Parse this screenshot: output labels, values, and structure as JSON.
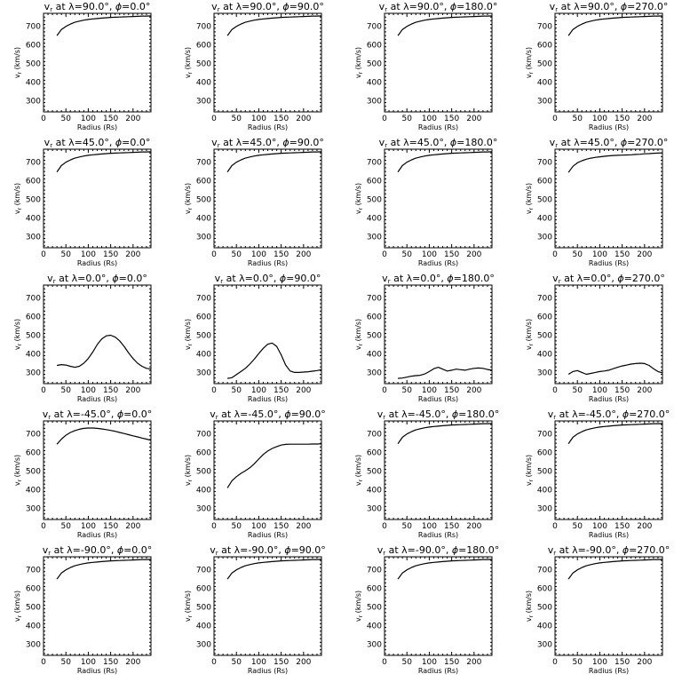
{
  "figure": {
    "xlabel": "Radius (Rs)",
    "ylabel": "v",
    "ylabel_sub": "r",
    "ylabel_unit": "(km/s)",
    "title_parts": {
      "prefix": "v",
      "sub": "r",
      "at": "at",
      "lambda": "λ",
      "phi": "ϕ",
      "deg": "°"
    }
  },
  "chart_data": [
    {
      "type": "line",
      "lat": "90.0",
      "lon": "0.0",
      "xlim": [
        0,
        240
      ],
      "ylim": [
        240,
        770
      ],
      "xticks": [
        0,
        50,
        100,
        150,
        200
      ],
      "yticks": [
        300,
        400,
        500,
        600,
        700
      ],
      "x": [
        30,
        40,
        50,
        60,
        70,
        80,
        90,
        100,
        110,
        120,
        130,
        140,
        150,
        160,
        170,
        180,
        190,
        200,
        210,
        220,
        230,
        240
      ],
      "y": [
        650,
        683,
        700,
        712,
        722,
        728,
        733,
        737,
        740,
        742,
        744,
        746,
        748,
        749,
        750,
        751,
        752,
        753,
        754,
        755,
        755,
        756
      ]
    },
    {
      "type": "line",
      "lat": "90.0",
      "lon": "90.0",
      "xlim": [
        0,
        240
      ],
      "ylim": [
        240,
        770
      ],
      "xticks": [
        0,
        50,
        100,
        150,
        200
      ],
      "yticks": [
        300,
        400,
        500,
        600,
        700
      ],
      "x": [
        30,
        40,
        50,
        60,
        70,
        80,
        90,
        100,
        110,
        120,
        130,
        140,
        150,
        160,
        170,
        180,
        190,
        200,
        210,
        220,
        230,
        240
      ],
      "y": [
        650,
        683,
        700,
        712,
        722,
        728,
        733,
        737,
        740,
        742,
        744,
        746,
        748,
        749,
        750,
        751,
        752,
        753,
        754,
        755,
        755,
        756
      ]
    },
    {
      "type": "line",
      "lat": "90.0",
      "lon": "180.0",
      "xlim": [
        0,
        240
      ],
      "ylim": [
        240,
        770
      ],
      "xticks": [
        0,
        50,
        100,
        150,
        200
      ],
      "yticks": [
        300,
        400,
        500,
        600,
        700
      ],
      "x": [
        30,
        40,
        50,
        60,
        70,
        80,
        90,
        100,
        110,
        120,
        130,
        140,
        150,
        160,
        170,
        180,
        190,
        200,
        210,
        220,
        230,
        240
      ],
      "y": [
        650,
        683,
        700,
        712,
        722,
        728,
        733,
        737,
        740,
        742,
        744,
        746,
        748,
        749,
        750,
        751,
        752,
        753,
        754,
        755,
        755,
        756
      ]
    },
    {
      "type": "line",
      "lat": "90.0",
      "lon": "270.0",
      "xlim": [
        0,
        240
      ],
      "ylim": [
        240,
        770
      ],
      "xticks": [
        0,
        50,
        100,
        150,
        200
      ],
      "yticks": [
        300,
        400,
        500,
        600,
        700
      ],
      "x": [
        30,
        40,
        50,
        60,
        70,
        80,
        90,
        100,
        110,
        120,
        130,
        140,
        150,
        160,
        170,
        180,
        190,
        200,
        210,
        220,
        230,
        240
      ],
      "y": [
        650,
        683,
        700,
        712,
        722,
        728,
        733,
        737,
        740,
        742,
        744,
        746,
        748,
        749,
        750,
        751,
        752,
        753,
        754,
        755,
        755,
        756
      ]
    },
    {
      "type": "line",
      "lat": "45.0",
      "lon": "0.0",
      "xlim": [
        0,
        240
      ],
      "ylim": [
        240,
        770
      ],
      "xticks": [
        0,
        50,
        100,
        150,
        200
      ],
      "yticks": [
        300,
        400,
        500,
        600,
        700
      ],
      "x": [
        30,
        40,
        50,
        60,
        70,
        80,
        90,
        100,
        110,
        120,
        130,
        140,
        150,
        160,
        170,
        180,
        190,
        200,
        210,
        220,
        230,
        240
      ],
      "y": [
        648,
        682,
        700,
        712,
        722,
        728,
        733,
        737,
        740,
        742,
        744,
        746,
        748,
        749,
        750,
        751,
        752,
        753,
        754,
        755,
        755,
        756
      ]
    },
    {
      "type": "line",
      "lat": "45.0",
      "lon": "90.0",
      "xlim": [
        0,
        240
      ],
      "ylim": [
        240,
        770
      ],
      "xticks": [
        0,
        50,
        100,
        150,
        200
      ],
      "yticks": [
        300,
        400,
        500,
        600,
        700
      ],
      "x": [
        30,
        40,
        50,
        60,
        70,
        80,
        90,
        100,
        110,
        120,
        130,
        140,
        150,
        160,
        170,
        180,
        190,
        200,
        210,
        220,
        230,
        240
      ],
      "y": [
        648,
        682,
        700,
        712,
        722,
        728,
        733,
        737,
        740,
        742,
        744,
        746,
        748,
        749,
        750,
        751,
        752,
        753,
        754,
        755,
        755,
        756
      ]
    },
    {
      "type": "line",
      "lat": "45.0",
      "lon": "180.0",
      "xlim": [
        0,
        240
      ],
      "ylim": [
        240,
        770
      ],
      "xticks": [
        0,
        50,
        100,
        150,
        200
      ],
      "yticks": [
        300,
        400,
        500,
        600,
        700
      ],
      "x": [
        30,
        40,
        50,
        60,
        70,
        80,
        90,
        100,
        110,
        120,
        130,
        140,
        150,
        160,
        170,
        180,
        190,
        200,
        210,
        220,
        230,
        240
      ],
      "y": [
        648,
        682,
        700,
        712,
        722,
        728,
        733,
        737,
        740,
        742,
        744,
        746,
        748,
        749,
        750,
        751,
        752,
        753,
        754,
        755,
        755,
        756
      ]
    },
    {
      "type": "line",
      "lat": "45.0",
      "lon": "270.0",
      "xlim": [
        0,
        240
      ],
      "ylim": [
        240,
        770
      ],
      "xticks": [
        0,
        50,
        100,
        150,
        200
      ],
      "yticks": [
        300,
        400,
        500,
        600,
        700
      ],
      "x": [
        30,
        40,
        50,
        60,
        70,
        80,
        90,
        100,
        110,
        120,
        130,
        140,
        150,
        160,
        170,
        180,
        190,
        200,
        210,
        220,
        230,
        240
      ],
      "y": [
        645,
        678,
        697,
        708,
        716,
        722,
        726,
        729,
        732,
        734,
        736,
        737,
        738,
        739,
        740,
        742,
        743,
        745,
        746,
        748,
        749,
        750
      ]
    },
    {
      "type": "line",
      "lat": "0.0",
      "lon": "0.0",
      "xlim": [
        0,
        240
      ],
      "ylim": [
        240,
        770
      ],
      "xticks": [
        0,
        50,
        100,
        150,
        200
      ],
      "yticks": [
        300,
        400,
        500,
        600,
        700
      ],
      "x": [
        30,
        40,
        50,
        60,
        70,
        80,
        90,
        100,
        110,
        120,
        130,
        140,
        150,
        160,
        170,
        180,
        190,
        200,
        210,
        220,
        230,
        240
      ],
      "y": [
        338,
        342,
        340,
        333,
        328,
        333,
        350,
        375,
        410,
        450,
        480,
        497,
        500,
        490,
        470,
        440,
        405,
        375,
        350,
        333,
        322,
        318
      ]
    },
    {
      "type": "line",
      "lat": "0.0",
      "lon": "90.0",
      "xlim": [
        0,
        240
      ],
      "ylim": [
        240,
        770
      ],
      "xticks": [
        0,
        50,
        100,
        150,
        200
      ],
      "yticks": [
        300,
        400,
        500,
        600,
        700
      ],
      "x": [
        30,
        40,
        50,
        60,
        70,
        80,
        90,
        100,
        110,
        120,
        130,
        140,
        150,
        160,
        170,
        180,
        190,
        200,
        210,
        220,
        230,
        240
      ],
      "y": [
        268,
        272,
        288,
        305,
        322,
        345,
        372,
        402,
        430,
        452,
        458,
        440,
        395,
        340,
        308,
        300,
        300,
        302,
        304,
        307,
        310,
        315
      ]
    },
    {
      "type": "line",
      "lat": "0.0",
      "lon": "180.0",
      "xlim": [
        0,
        240
      ],
      "ylim": [
        240,
        770
      ],
      "xticks": [
        0,
        50,
        100,
        150,
        200
      ],
      "yticks": [
        300,
        400,
        500,
        600,
        700
      ],
      "x": [
        30,
        40,
        50,
        60,
        70,
        80,
        90,
        100,
        110,
        120,
        130,
        140,
        150,
        160,
        170,
        180,
        190,
        200,
        210,
        220,
        230,
        240
      ],
      "y": [
        268,
        270,
        275,
        280,
        283,
        285,
        292,
        305,
        320,
        328,
        318,
        308,
        312,
        318,
        315,
        312,
        318,
        322,
        324,
        322,
        316,
        312
      ]
    },
    {
      "type": "line",
      "lat": "0.0",
      "lon": "270.0",
      "xlim": [
        0,
        240
      ],
      "ylim": [
        240,
        770
      ],
      "xticks": [
        0,
        50,
        100,
        150,
        200
      ],
      "yticks": [
        300,
        400,
        500,
        600,
        700
      ],
      "x": [
        30,
        40,
        50,
        60,
        70,
        80,
        90,
        100,
        110,
        120,
        130,
        140,
        150,
        160,
        170,
        180,
        190,
        200,
        210,
        220,
        230,
        240
      ],
      "y": [
        290,
        305,
        310,
        300,
        290,
        295,
        300,
        305,
        308,
        312,
        320,
        328,
        335,
        340,
        345,
        348,
        350,
        348,
        338,
        320,
        305,
        298
      ]
    },
    {
      "type": "line",
      "lat": "-45.0",
      "lon": "0.0",
      "xlim": [
        0,
        240
      ],
      "ylim": [
        240,
        770
      ],
      "xticks": [
        0,
        50,
        100,
        150,
        200
      ],
      "yticks": [
        300,
        400,
        500,
        600,
        700
      ],
      "x": [
        30,
        40,
        50,
        60,
        70,
        80,
        90,
        100,
        110,
        120,
        130,
        140,
        150,
        160,
        170,
        180,
        190,
        200,
        210,
        220,
        230,
        240
      ],
      "y": [
        645,
        672,
        693,
        708,
        718,
        725,
        730,
        732,
        732,
        730,
        727,
        723,
        719,
        714,
        708,
        702,
        696,
        690,
        684,
        678,
        672,
        666
      ]
    },
    {
      "type": "line",
      "lat": "-45.0",
      "lon": "90.0",
      "xlim": [
        0,
        240
      ],
      "ylim": [
        240,
        770
      ],
      "xticks": [
        0,
        50,
        100,
        150,
        200
      ],
      "yticks": [
        300,
        400,
        500,
        600,
        700
      ],
      "x": [
        30,
        40,
        50,
        60,
        70,
        80,
        90,
        100,
        110,
        120,
        130,
        140,
        150,
        160,
        170,
        180,
        190,
        200,
        210,
        220,
        230,
        240
      ],
      "y": [
        410,
        448,
        470,
        488,
        502,
        518,
        540,
        565,
        590,
        608,
        622,
        632,
        640,
        644,
        645,
        645,
        645,
        645,
        645,
        646,
        646,
        647
      ]
    },
    {
      "type": "line",
      "lat": "-45.0",
      "lon": "180.0",
      "xlim": [
        0,
        240
      ],
      "ylim": [
        240,
        770
      ],
      "xticks": [
        0,
        50,
        100,
        150,
        200
      ],
      "yticks": [
        300,
        400,
        500,
        600,
        700
      ],
      "x": [
        30,
        40,
        50,
        60,
        70,
        80,
        90,
        100,
        110,
        120,
        130,
        140,
        150,
        160,
        170,
        180,
        190,
        200,
        210,
        220,
        230,
        240
      ],
      "y": [
        648,
        682,
        700,
        712,
        722,
        728,
        733,
        737,
        740,
        742,
        744,
        746,
        748,
        749,
        750,
        751,
        752,
        753,
        754,
        755,
        755,
        756
      ]
    },
    {
      "type": "line",
      "lat": "-45.0",
      "lon": "270.0",
      "xlim": [
        0,
        240
      ],
      "ylim": [
        240,
        770
      ],
      "xticks": [
        0,
        50,
        100,
        150,
        200
      ],
      "yticks": [
        300,
        400,
        500,
        600,
        700
      ],
      "x": [
        30,
        40,
        50,
        60,
        70,
        80,
        90,
        100,
        110,
        120,
        130,
        140,
        150,
        160,
        170,
        180,
        190,
        200,
        210,
        220,
        230,
        240
      ],
      "y": [
        648,
        682,
        700,
        712,
        722,
        728,
        733,
        737,
        740,
        742,
        744,
        746,
        748,
        749,
        750,
        751,
        752,
        753,
        754,
        755,
        755,
        756
      ]
    },
    {
      "type": "line",
      "lat": "-90.0",
      "lon": "0.0",
      "xlim": [
        0,
        240
      ],
      "ylim": [
        240,
        770
      ],
      "xticks": [
        0,
        50,
        100,
        150,
        200
      ],
      "yticks": [
        300,
        400,
        500,
        600,
        700
      ],
      "x": [
        30,
        40,
        50,
        60,
        70,
        80,
        90,
        100,
        110,
        120,
        130,
        140,
        150,
        160,
        170,
        180,
        190,
        200,
        210,
        220,
        230,
        240
      ],
      "y": [
        650,
        683,
        700,
        712,
        722,
        728,
        733,
        737,
        740,
        742,
        744,
        746,
        748,
        749,
        750,
        751,
        752,
        753,
        754,
        755,
        755,
        756
      ]
    },
    {
      "type": "line",
      "lat": "-90.0",
      "lon": "90.0",
      "xlim": [
        0,
        240
      ],
      "ylim": [
        240,
        770
      ],
      "xticks": [
        0,
        50,
        100,
        150,
        200
      ],
      "yticks": [
        300,
        400,
        500,
        600,
        700
      ],
      "x": [
        30,
        40,
        50,
        60,
        70,
        80,
        90,
        100,
        110,
        120,
        130,
        140,
        150,
        160,
        170,
        180,
        190,
        200,
        210,
        220,
        230,
        240
      ],
      "y": [
        650,
        683,
        700,
        712,
        722,
        728,
        733,
        737,
        740,
        742,
        744,
        746,
        748,
        749,
        750,
        751,
        752,
        753,
        754,
        755,
        755,
        756
      ]
    },
    {
      "type": "line",
      "lat": "-90.0",
      "lon": "180.0",
      "xlim": [
        0,
        240
      ],
      "ylim": [
        240,
        770
      ],
      "xticks": [
        0,
        50,
        100,
        150,
        200
      ],
      "yticks": [
        300,
        400,
        500,
        600,
        700
      ],
      "x": [
        30,
        40,
        50,
        60,
        70,
        80,
        90,
        100,
        110,
        120,
        130,
        140,
        150,
        160,
        170,
        180,
        190,
        200,
        210,
        220,
        230,
        240
      ],
      "y": [
        650,
        683,
        700,
        712,
        722,
        728,
        733,
        737,
        740,
        742,
        744,
        746,
        748,
        749,
        750,
        751,
        752,
        753,
        754,
        755,
        755,
        756
      ]
    },
    {
      "type": "line",
      "lat": "-90.0",
      "lon": "270.0",
      "xlim": [
        0,
        240
      ],
      "ylim": [
        240,
        770
      ],
      "xticks": [
        0,
        50,
        100,
        150,
        200
      ],
      "yticks": [
        300,
        400,
        500,
        600,
        700
      ],
      "x": [
        30,
        40,
        50,
        60,
        70,
        80,
        90,
        100,
        110,
        120,
        130,
        140,
        150,
        160,
        170,
        180,
        190,
        200,
        210,
        220,
        230,
        240
      ],
      "y": [
        650,
        683,
        700,
        712,
        722,
        728,
        733,
        737,
        740,
        742,
        744,
        746,
        748,
        749,
        750,
        751,
        752,
        753,
        754,
        755,
        755,
        756
      ]
    }
  ]
}
